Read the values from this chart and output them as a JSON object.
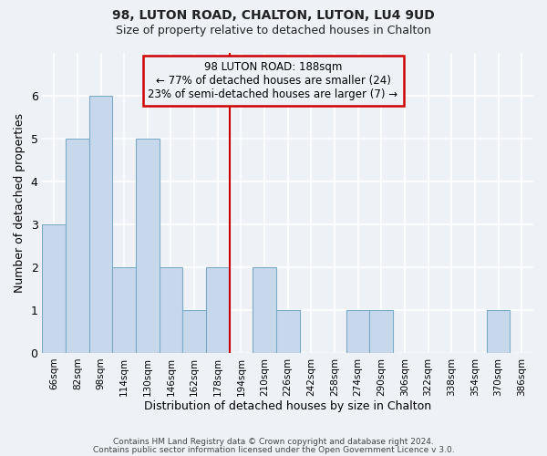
{
  "title1": "98, LUTON ROAD, CHALTON, LUTON, LU4 9UD",
  "title2": "Size of property relative to detached houses in Chalton",
  "xlabel": "Distribution of detached houses by size in Chalton",
  "ylabel": "Number of detached properties",
  "categories": [
    "66sqm",
    "82sqm",
    "98sqm",
    "114sqm",
    "130sqm",
    "146sqm",
    "162sqm",
    "178sqm",
    "194sqm",
    "210sqm",
    "226sqm",
    "242sqm",
    "258sqm",
    "274sqm",
    "290sqm",
    "306sqm",
    "322sqm",
    "338sqm",
    "354sqm",
    "370sqm",
    "386sqm"
  ],
  "values": [
    3,
    5,
    6,
    2,
    5,
    2,
    1,
    2,
    0,
    2,
    1,
    0,
    0,
    1,
    1,
    0,
    0,
    0,
    0,
    1,
    0
  ],
  "bar_color": "#c8d8ec",
  "bar_edge_color": "#7aaac8",
  "marker_index": 8,
  "marker_label": "98 LUTON ROAD: 188sqm",
  "annotation_line1": "← 77% of detached houses are smaller (24)",
  "annotation_line2": "23% of semi-detached houses are larger (7) →",
  "ylim": [
    0,
    7
  ],
  "yticks": [
    0,
    1,
    2,
    3,
    4,
    5,
    6
  ],
  "footer1": "Contains HM Land Registry data © Crown copyright and database right 2024.",
  "footer2": "Contains public sector information licensed under the Open Government Licence v 3.0.",
  "bg_color": "#eef2f6",
  "grid_color": "#ffffff",
  "box_color": "#cc0000"
}
